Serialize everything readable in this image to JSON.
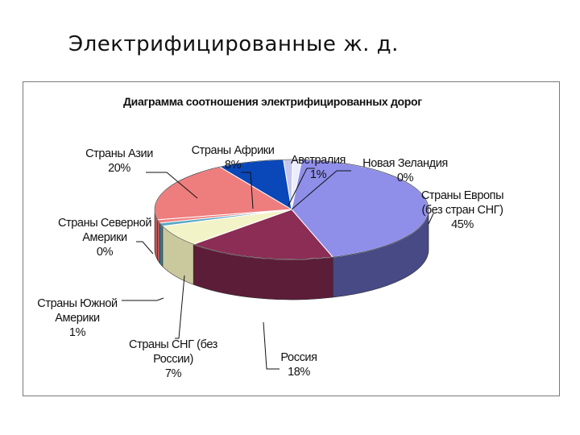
{
  "slide": {
    "title": "Электрифицированные ж. д."
  },
  "chart_data": {
    "type": "pie",
    "title": "Диаграмма соотношения электрифицированных дорог",
    "legend": "none",
    "slices": [
      {
        "lines": [
          "Страны  Европы",
          "(без стран СНГ)"
        ],
        "value": 45,
        "value_label": "45%",
        "color": "#8f8fea",
        "side_color": "#474a85"
      },
      {
        "lines": [
          "Россия"
        ],
        "value": 18,
        "value_label": "18%",
        "color": "#8b2d55",
        "side_color": "#5c1d38"
      },
      {
        "lines": [
          "Страны СНГ (без",
          "России)"
        ],
        "value": 7,
        "value_label": "7%",
        "color": "#f3f3c8",
        "side_color": "#c9c99d"
      },
      {
        "lines": [
          "Страны Южной",
          "Америки"
        ],
        "value": 1,
        "value_label": "1%",
        "color": "#5aa8c4",
        "side_color": "#3a7a92"
      },
      {
        "lines": [
          "Страны Северной",
          "Америки"
        ],
        "value": 0,
        "value_label": "0%",
        "color": "#f07f7f",
        "side_color": "#b95656"
      },
      {
        "lines": [
          "Страны Азии"
        ],
        "value": 20,
        "value_label": "20%",
        "color": "#ee7d7d",
        "side_color": "#b75555"
      },
      {
        "lines": [
          "Страны Африки"
        ],
        "value": 8,
        "value_label": "8%",
        "color": "#0a47b8",
        "side_color": "#06307d"
      },
      {
        "lines": [
          "Австралия"
        ],
        "value": 1,
        "value_label": "1%",
        "color": "#c6c6ec",
        "side_color": "#9292b8"
      },
      {
        "lines": [
          "Новая Зеландия"
        ],
        "value": 0,
        "value_label": "0%",
        "color": "#ececff",
        "side_color": "#b2b2cc"
      }
    ]
  }
}
